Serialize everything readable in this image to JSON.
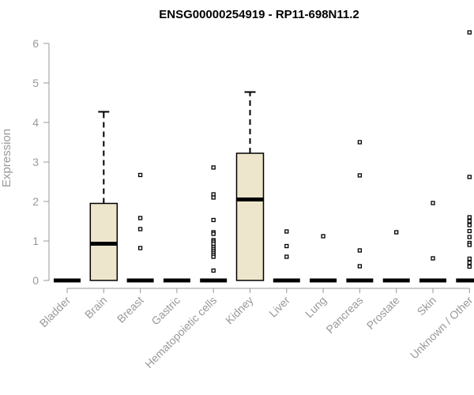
{
  "chart_data": {
    "type": "box",
    "title": "ENSG00000254919 - RP11-698N11.2",
    "xlabel": "",
    "ylabel": "Expression",
    "ylim": [
      0,
      6.5
    ],
    "yticks": [
      0,
      1,
      2,
      3,
      4,
      5,
      6
    ],
    "box_fill": "#ede6cc",
    "categories": [
      "Bladder",
      "Brain",
      "Breast",
      "Gastric",
      "Hematopoietic cells",
      "Kidney",
      "Liver",
      "Lung",
      "Pancreas",
      "Prostate",
      "Skin",
      "Unknown / Other"
    ],
    "boxes": [
      {
        "category": "Bladder",
        "q1": 0,
        "median": 0,
        "q3": 0,
        "whisker_low": 0,
        "whisker_high": 0,
        "outliers": []
      },
      {
        "category": "Brain",
        "q1": 0,
        "median": 0.93,
        "q3": 1.95,
        "whisker_low": 0,
        "whisker_high": 4.27,
        "outliers": []
      },
      {
        "category": "Breast",
        "q1": 0,
        "median": 0,
        "q3": 0,
        "whisker_low": 0,
        "whisker_high": 0,
        "outliers": [
          2.67,
          1.58,
          1.3,
          0.82
        ]
      },
      {
        "category": "Gastric",
        "q1": 0,
        "median": 0,
        "q3": 0,
        "whisker_low": 0,
        "whisker_high": 0,
        "outliers": []
      },
      {
        "category": "Hematopoietic cells",
        "q1": 0,
        "median": 0,
        "q3": 0,
        "whisker_low": 0,
        "whisker_high": 0,
        "outliers": [
          2.86,
          2.18,
          2.1,
          1.53,
          1.22,
          1.18,
          1.02,
          0.98,
          0.93,
          0.85,
          0.8,
          0.75,
          0.7,
          0.65,
          0.6,
          0.25
        ]
      },
      {
        "category": "Kidney",
        "q1": 0,
        "median": 2.05,
        "q3": 3.22,
        "whisker_low": 0,
        "whisker_high": 4.77,
        "outliers": []
      },
      {
        "category": "Liver",
        "q1": 0,
        "median": 0,
        "q3": 0,
        "whisker_low": 0,
        "whisker_high": 0,
        "outliers": [
          1.24,
          0.87,
          0.6
        ]
      },
      {
        "category": "Lung",
        "q1": 0,
        "median": 0,
        "q3": 0,
        "whisker_low": 0,
        "whisker_high": 0,
        "outliers": [
          1.12
        ]
      },
      {
        "category": "Pancreas",
        "q1": 0,
        "median": 0,
        "q3": 0,
        "whisker_low": 0,
        "whisker_high": 0,
        "outliers": [
          3.5,
          2.66,
          0.76,
          0.36
        ]
      },
      {
        "category": "Prostate",
        "q1": 0,
        "median": 0,
        "q3": 0,
        "whisker_low": 0,
        "whisker_high": 0,
        "outliers": [
          1.22
        ]
      },
      {
        "category": "Skin",
        "q1": 0,
        "median": 0,
        "q3": 0,
        "whisker_low": 0,
        "whisker_high": 0,
        "outliers": [
          1.96,
          0.56
        ]
      },
      {
        "category": "Unknown / Other",
        "q1": 0,
        "median": 0,
        "q3": 0,
        "whisker_low": 0,
        "whisker_high": 0,
        "outliers": [
          6.28,
          2.62,
          1.6,
          1.5,
          1.4,
          1.25,
          1.1,
          0.95,
          0.9,
          0.55,
          0.45,
          0.35
        ]
      }
    ]
  }
}
